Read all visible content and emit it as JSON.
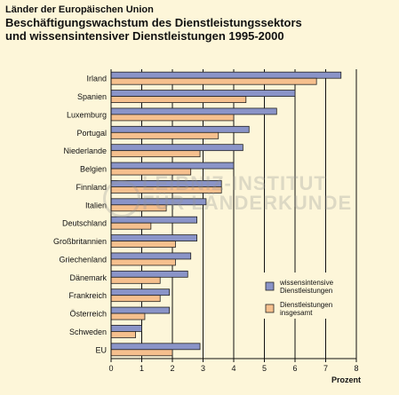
{
  "header": {
    "subtitle": "Länder der Europäischen Union",
    "title_line1": "Beschäftigungswachstum des Dienstleistungssektors",
    "title_line2": "und wissensintensiver Dienstleistungen 1995-2000"
  },
  "watermark": {
    "line1": "LEIBNIZ-INSTITUT",
    "line2": "FÜR LÄNDERKUNDE"
  },
  "colors": {
    "background": "#fdf6d9",
    "series_knowledge": "#8a94c8",
    "series_total": "#f6c08e",
    "bar_border": "#222222"
  },
  "chart_data": {
    "type": "bar",
    "orientation": "horizontal",
    "categories": [
      "Irland",
      "Spanien",
      "Luxemburg",
      "Portugal",
      "Niederlande",
      "Belgien",
      "Finnland",
      "Italien",
      "Deutschland",
      "Großbritannien",
      "Griechenland",
      "Dänemark",
      "Frankreich",
      "Österreich",
      "Schweden",
      "EU"
    ],
    "series": [
      {
        "name": "wissensintensive Dienstleistungen",
        "legend_lines": [
          "wissensintensive",
          "Dienstleistungen"
        ],
        "color": "#8a94c8",
        "values": [
          7.5,
          6.0,
          5.4,
          4.5,
          4.3,
          4.0,
          3.6,
          3.1,
          2.8,
          2.8,
          2.6,
          2.5,
          1.9,
          1.9,
          1.0,
          2.9
        ]
      },
      {
        "name": "Dienstleistungen insgesamt",
        "legend_lines": [
          "Dienstleistungen",
          "insgesamt"
        ],
        "color": "#f6c08e",
        "values": [
          6.7,
          4.4,
          4.0,
          3.5,
          2.9,
          2.6,
          3.6,
          1.8,
          1.3,
          2.1,
          2.1,
          1.6,
          1.6,
          1.1,
          0.8,
          2.0
        ]
      }
    ],
    "xlabel": "Prozent",
    "xlim": [
      0,
      8
    ],
    "xticks": [
      "0",
      "1",
      "2",
      "3",
      "4",
      "5",
      "6",
      "7",
      "8"
    ],
    "grid": "vertical",
    "legend": "bottom-right"
  }
}
